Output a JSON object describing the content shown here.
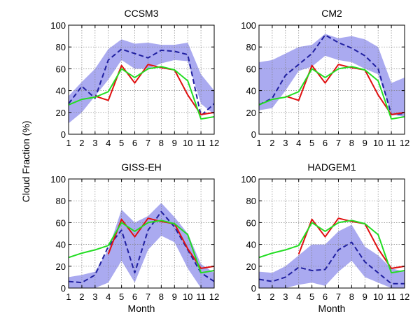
{
  "figure": {
    "ylabel": "Cloud Fraction (%)",
    "colors": {
      "band": "#aaaaf0",
      "model": "#2020a0",
      "obs_red": "#e01010",
      "obs_green": "#22dd22"
    }
  },
  "chart_data": [
    {
      "type": "line",
      "title": "CCSM3",
      "xlabel": "",
      "x": [
        1,
        2,
        3,
        4,
        5,
        6,
        7,
        8,
        9,
        10,
        11,
        12
      ],
      "xlim": [
        1,
        12
      ],
      "ylim": [
        0,
        100
      ],
      "yticks": [
        0,
        20,
        40,
        60,
        80,
        100
      ],
      "grid": true,
      "series": [
        {
          "style": "band",
          "lower": [
            10,
            20,
            35,
            50,
            68,
            60,
            60,
            65,
            68,
            67,
            28,
            18
          ],
          "upper": [
            35,
            48,
            60,
            78,
            87,
            83,
            84,
            82,
            82,
            84,
            55,
            40
          ]
        },
        {
          "style": "dashed-blue",
          "values": [
            28,
            44,
            33,
            68,
            78,
            74,
            70,
            77,
            76,
            73,
            17,
            28
          ]
        },
        {
          "style": "solid-red",
          "values": [
            27,
            null,
            35,
            31,
            63,
            47,
            64,
            61,
            59,
            36,
            18,
            20
          ]
        },
        {
          "style": "solid-green",
          "values": [
            27,
            32,
            34,
            39,
            60,
            52,
            60,
            62,
            59,
            49,
            14,
            16
          ]
        }
      ]
    },
    {
      "type": "line",
      "title": "CM2",
      "xlabel": "",
      "x": [
        1,
        2,
        3,
        4,
        5,
        6,
        7,
        8,
        9,
        10,
        11,
        12
      ],
      "xlim": [
        1,
        12
      ],
      "ylim": [
        0,
        100
      ],
      "yticks": [
        0,
        20,
        40,
        60,
        80,
        100
      ],
      "grid": true,
      "series": [
        {
          "style": "band",
          "lower": [
            22,
            24,
            40,
            58,
            62,
            72,
            68,
            66,
            60,
            55,
            18,
            16
          ],
          "upper": [
            66,
            68,
            74,
            80,
            82,
            92,
            88,
            90,
            87,
            80,
            47,
            52
          ]
        },
        {
          "style": "dashed-blue",
          "values": [
            27,
            33,
            54,
            64,
            74,
            91,
            84,
            79,
            72,
            60,
            18,
            19
          ]
        },
        {
          "style": "solid-red",
          "values": [
            27,
            null,
            35,
            31,
            63,
            47,
            64,
            61,
            59,
            36,
            18,
            20
          ]
        },
        {
          "style": "solid-green",
          "values": [
            27,
            32,
            34,
            39,
            60,
            52,
            60,
            62,
            59,
            49,
            14,
            16
          ]
        }
      ]
    },
    {
      "type": "line",
      "title": "GISS-EH",
      "xlabel": "Month",
      "x": [
        1,
        2,
        3,
        4,
        5,
        6,
        7,
        8,
        9,
        10,
        11,
        12
      ],
      "xlim": [
        1,
        12
      ],
      "ylim": [
        0,
        100
      ],
      "yticks": [
        0,
        20,
        40,
        60,
        80,
        100
      ],
      "grid": true,
      "series": [
        {
          "style": "band",
          "lower": [
            0,
            0,
            0,
            5,
            25,
            5,
            35,
            48,
            42,
            18,
            0,
            0
          ],
          "upper": [
            10,
            12,
            15,
            35,
            72,
            60,
            66,
            78,
            65,
            50,
            22,
            14
          ]
        },
        {
          "style": "dashed-blue",
          "values": [
            6,
            5,
            12,
            38,
            53,
            14,
            53,
            70,
            56,
            35,
            14,
            6
          ]
        },
        {
          "style": "solid-red",
          "values": [
            null,
            null,
            null,
            31,
            63,
            47,
            64,
            61,
            59,
            36,
            18,
            20
          ]
        },
        {
          "style": "solid-green",
          "values": [
            28,
            32,
            35,
            39,
            60,
            52,
            60,
            62,
            59,
            49,
            14,
            16
          ]
        }
      ]
    },
    {
      "type": "line",
      "title": "HADGEM1",
      "xlabel": "Month",
      "x": [
        1,
        2,
        3,
        4,
        5,
        6,
        7,
        8,
        9,
        10,
        11,
        12
      ],
      "xlim": [
        1,
        12
      ],
      "ylim": [
        0,
        100
      ],
      "yticks": [
        0,
        20,
        40,
        60,
        80,
        100
      ],
      "grid": true,
      "series": [
        {
          "style": "band",
          "lower": [
            0,
            0,
            0,
            3,
            5,
            2,
            15,
            25,
            10,
            5,
            0,
            0
          ],
          "upper": [
            15,
            14,
            20,
            30,
            40,
            40,
            52,
            58,
            38,
            30,
            18,
            15
          ]
        },
        {
          "style": "dashed-blue",
          "values": [
            8,
            6,
            10,
            19,
            16,
            17,
            35,
            42,
            24,
            14,
            4,
            4
          ]
        },
        {
          "style": "solid-red",
          "values": [
            null,
            null,
            null,
            31,
            63,
            47,
            64,
            61,
            59,
            36,
            18,
            20
          ]
        },
        {
          "style": "solid-green",
          "values": [
            28,
            32,
            35,
            39,
            60,
            52,
            60,
            62,
            59,
            49,
            14,
            16
          ]
        }
      ]
    }
  ]
}
